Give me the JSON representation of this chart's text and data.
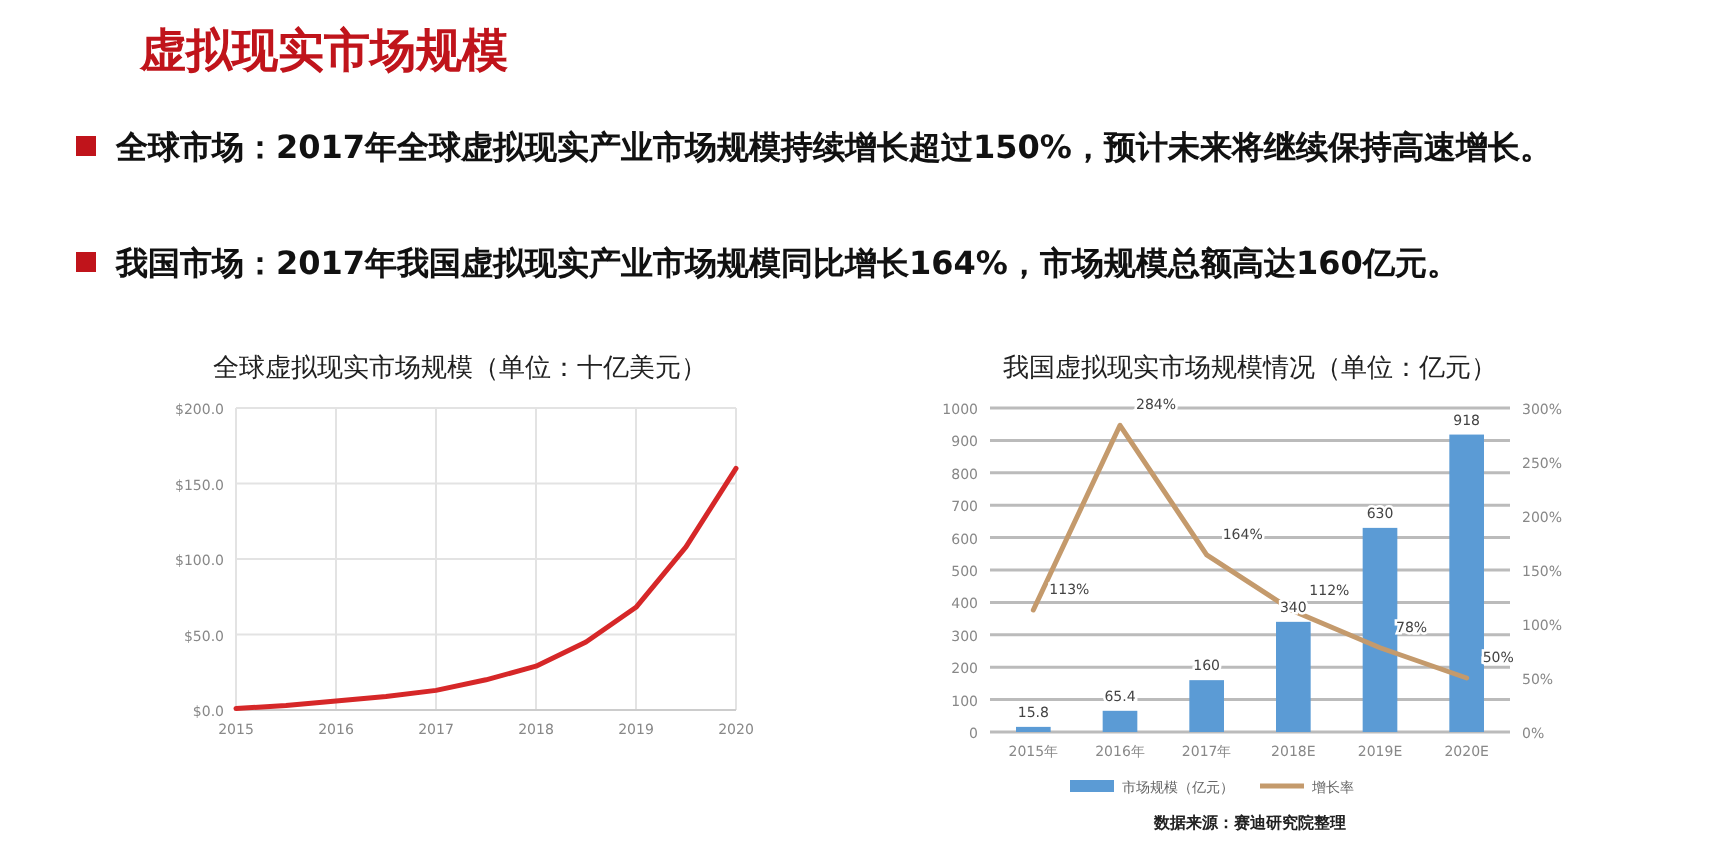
{
  "chart_data": [
    {
      "type": "other",
      "title": "虚拟现实市场规模",
      "annotations": [
        "全球市场：2017年全球虚拟现实产业市场规模持续增长超过150%，预计未来将继续保持高速增长。",
        "我国市场：2017年我国虚拟现实产业市场规模同比增长164%，市场规模总额高达160亿元。"
      ]
    },
    {
      "type": "line",
      "title": "全球虚拟现实市场规模（单位：十亿美元）",
      "x": [
        2015,
        2015.5,
        2016,
        2016.5,
        2017,
        2017.5,
        2018,
        2018.5,
        2019,
        2019.5,
        2020
      ],
      "series": [
        {
          "color": "#d62728",
          "values": [
            1,
            3,
            6,
            9,
            13,
            20,
            29,
            45,
            68,
            108,
            160
          ]
        }
      ],
      "xlim": [
        2015,
        2020
      ],
      "xticks": [
        2015,
        2016,
        2017,
        2018,
        2019,
        2020
      ],
      "ylim": [
        0,
        200
      ],
      "yticks": [
        {
          "value": 0,
          "label": "$0.0"
        },
        {
          "value": 50,
          "label": "$50.0"
        },
        {
          "value": 100,
          "label": "$100.0"
        },
        {
          "value": 150,
          "label": "$150.0"
        },
        {
          "value": 200,
          "label": "$200.0"
        }
      ],
      "grid": true,
      "legend": false
    },
    {
      "type": "bar",
      "title": "我国虚拟现实市场规模情况（单位：亿元）",
      "categories": [
        "2015年",
        "2016年",
        "2017年",
        "2018E",
        "2019E",
        "2020E"
      ],
      "series": [
        {
          "name": "市场规模（亿元）",
          "type": "bar",
          "color": "#5b9bd5",
          "values": [
            15.8,
            65.4,
            160,
            340,
            630,
            918
          ],
          "value_labels": [
            "15.8",
            "65.4",
            "160",
            "340",
            "630",
            "918"
          ]
        },
        {
          "name": "增长率",
          "type": "line",
          "axis": "y2",
          "color": "#c49a6c",
          "values": [
            113,
            284,
            164,
            112,
            78,
            50
          ],
          "value_labels": [
            "113%",
            "284%",
            "164%",
            "112%",
            "78%",
            "50%"
          ]
        }
      ],
      "ylim": [
        0,
        1000
      ],
      "yticks": [
        0,
        100,
        200,
        300,
        400,
        500,
        600,
        700,
        800,
        900,
        1000
      ],
      "y2lim": [
        0,
        300
      ],
      "y2ticks": [
        {
          "value": 0,
          "label": "0%"
        },
        {
          "value": 50,
          "label": "50%"
        },
        {
          "value": 100,
          "label": "100%"
        },
        {
          "value": 150,
          "label": "150%"
        },
        {
          "value": 200,
          "label": "200%"
        },
        {
          "value": 250,
          "label": "250%"
        },
        {
          "value": 300,
          "label": "300%"
        }
      ],
      "grid": "y",
      "legend": "bottom",
      "annotations": [
        "数据来源：赛迪研究院整理"
      ]
    }
  ]
}
